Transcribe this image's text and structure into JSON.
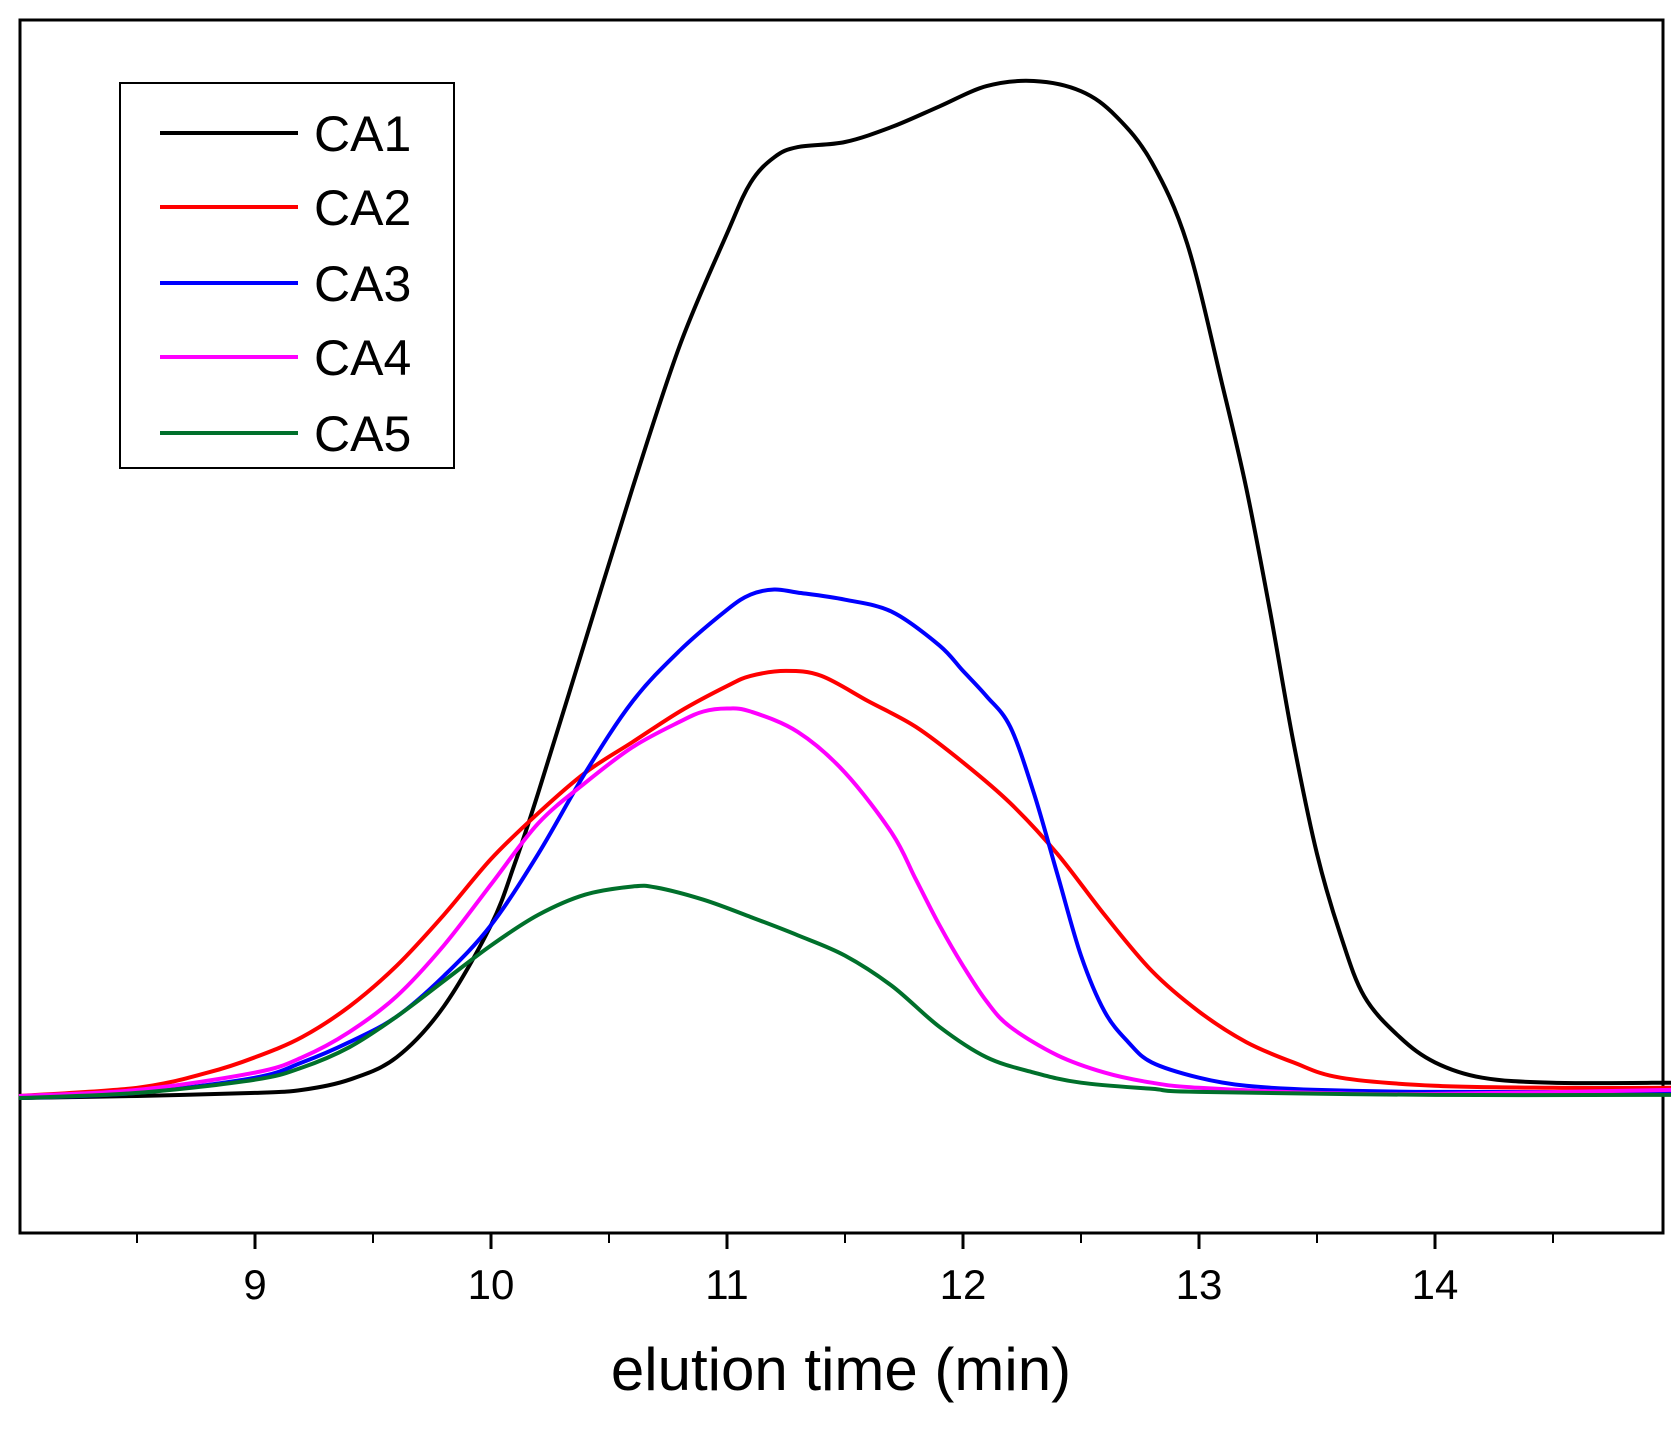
{
  "chart_data": {
    "type": "line",
    "title": "",
    "xlabel": "elution time (min)",
    "ylabel": "",
    "xlim": [
      8,
      15
    ],
    "ylim": [
      -0.12,
      1.0
    ],
    "x_ticks": [
      9,
      10,
      11,
      12,
      13,
      14
    ],
    "x_tick_labels": [
      "9",
      "10",
      "11",
      "12",
      "13",
      "14"
    ],
    "x_minor_ticks": [
      8.5,
      9.5,
      10.5,
      11.5,
      12.5,
      13.5,
      14.5
    ],
    "legend_position": "top-left",
    "series": [
      {
        "name": "CA1",
        "color": "#000000",
        "points": [
          [
            8.0,
            0.0
          ],
          [
            8.5,
            0.002
          ],
          [
            9.0,
            0.005
          ],
          [
            9.2,
            0.008
          ],
          [
            9.4,
            0.018
          ],
          [
            9.6,
            0.04
          ],
          [
            9.8,
            0.09
          ],
          [
            10.0,
            0.17
          ],
          [
            10.1,
            0.23
          ],
          [
            10.2,
            0.3
          ],
          [
            10.4,
            0.45
          ],
          [
            10.6,
            0.6
          ],
          [
            10.8,
            0.74
          ],
          [
            11.0,
            0.85
          ],
          [
            11.1,
            0.9
          ],
          [
            11.2,
            0.925
          ],
          [
            11.3,
            0.935
          ],
          [
            11.5,
            0.94
          ],
          [
            11.7,
            0.955
          ],
          [
            11.9,
            0.975
          ],
          [
            12.1,
            0.995
          ],
          [
            12.3,
            1.0
          ],
          [
            12.5,
            0.99
          ],
          [
            12.65,
            0.965
          ],
          [
            12.8,
            0.92
          ],
          [
            12.95,
            0.84
          ],
          [
            13.1,
            0.7
          ],
          [
            13.2,
            0.6
          ],
          [
            13.3,
            0.48
          ],
          [
            13.4,
            0.35
          ],
          [
            13.5,
            0.24
          ],
          [
            13.6,
            0.16
          ],
          [
            13.7,
            0.1
          ],
          [
            13.85,
            0.06
          ],
          [
            14.0,
            0.035
          ],
          [
            14.2,
            0.02
          ],
          [
            14.5,
            0.015
          ],
          [
            15.0,
            0.015
          ]
        ]
      },
      {
        "name": "CA2",
        "color": "#ff0000",
        "points": [
          [
            8.0,
            0.002
          ],
          [
            8.5,
            0.01
          ],
          [
            8.8,
            0.025
          ],
          [
            9.0,
            0.04
          ],
          [
            9.2,
            0.06
          ],
          [
            9.4,
            0.09
          ],
          [
            9.6,
            0.13
          ],
          [
            9.8,
            0.18
          ],
          [
            10.0,
            0.235
          ],
          [
            10.2,
            0.28
          ],
          [
            10.4,
            0.32
          ],
          [
            10.6,
            0.35
          ],
          [
            10.8,
            0.38
          ],
          [
            11.0,
            0.405
          ],
          [
            11.1,
            0.415
          ],
          [
            11.25,
            0.42
          ],
          [
            11.4,
            0.415
          ],
          [
            11.6,
            0.39
          ],
          [
            11.8,
            0.365
          ],
          [
            12.0,
            0.33
          ],
          [
            12.2,
            0.29
          ],
          [
            12.4,
            0.24
          ],
          [
            12.6,
            0.18
          ],
          [
            12.8,
            0.125
          ],
          [
            13.0,
            0.085
          ],
          [
            13.2,
            0.055
          ],
          [
            13.4,
            0.035
          ],
          [
            13.6,
            0.02
          ],
          [
            14.0,
            0.012
          ],
          [
            14.5,
            0.01
          ],
          [
            15.0,
            0.01
          ]
        ]
      },
      {
        "name": "CA3",
        "color": "#0000ff",
        "points": [
          [
            8.0,
            0.0
          ],
          [
            8.5,
            0.005
          ],
          [
            9.0,
            0.02
          ],
          [
            9.2,
            0.035
          ],
          [
            9.4,
            0.055
          ],
          [
            9.6,
            0.08
          ],
          [
            9.8,
            0.12
          ],
          [
            10.0,
            0.17
          ],
          [
            10.2,
            0.24
          ],
          [
            10.4,
            0.32
          ],
          [
            10.6,
            0.39
          ],
          [
            10.8,
            0.44
          ],
          [
            11.0,
            0.48
          ],
          [
            11.1,
            0.495
          ],
          [
            11.2,
            0.5
          ],
          [
            11.3,
            0.497
          ],
          [
            11.5,
            0.49
          ],
          [
            11.7,
            0.478
          ],
          [
            11.9,
            0.445
          ],
          [
            12.0,
            0.42
          ],
          [
            12.1,
            0.395
          ],
          [
            12.2,
            0.365
          ],
          [
            12.3,
            0.3
          ],
          [
            12.4,
            0.22
          ],
          [
            12.5,
            0.14
          ],
          [
            12.6,
            0.085
          ],
          [
            12.7,
            0.055
          ],
          [
            12.8,
            0.035
          ],
          [
            13.0,
            0.02
          ],
          [
            13.2,
            0.012
          ],
          [
            13.5,
            0.008
          ],
          [
            14.0,
            0.006
          ],
          [
            15.0,
            0.006
          ]
        ]
      },
      {
        "name": "CA4",
        "color": "#ff00ff",
        "points": [
          [
            8.0,
            0.002
          ],
          [
            8.5,
            0.008
          ],
          [
            9.0,
            0.025
          ],
          [
            9.2,
            0.04
          ],
          [
            9.4,
            0.065
          ],
          [
            9.6,
            0.1
          ],
          [
            9.8,
            0.15
          ],
          [
            10.0,
            0.21
          ],
          [
            10.2,
            0.27
          ],
          [
            10.4,
            0.31
          ],
          [
            10.6,
            0.345
          ],
          [
            10.8,
            0.37
          ],
          [
            10.9,
            0.38
          ],
          [
            11.0,
            0.383
          ],
          [
            11.1,
            0.38
          ],
          [
            11.3,
            0.36
          ],
          [
            11.5,
            0.32
          ],
          [
            11.7,
            0.26
          ],
          [
            11.8,
            0.215
          ],
          [
            11.9,
            0.17
          ],
          [
            12.0,
            0.13
          ],
          [
            12.1,
            0.095
          ],
          [
            12.2,
            0.07
          ],
          [
            12.4,
            0.042
          ],
          [
            12.6,
            0.025
          ],
          [
            12.8,
            0.015
          ],
          [
            13.0,
            0.01
          ],
          [
            13.5,
            0.005
          ],
          [
            14.0,
            0.004
          ],
          [
            15.0,
            0.008
          ]
        ]
      },
      {
        "name": "CA5",
        "color": "#00702b",
        "points": [
          [
            8.0,
            0.0
          ],
          [
            8.5,
            0.005
          ],
          [
            9.0,
            0.018
          ],
          [
            9.2,
            0.03
          ],
          [
            9.4,
            0.05
          ],
          [
            9.6,
            0.08
          ],
          [
            9.8,
            0.115
          ],
          [
            10.0,
            0.15
          ],
          [
            10.2,
            0.18
          ],
          [
            10.4,
            0.2
          ],
          [
            10.6,
            0.208
          ],
          [
            10.7,
            0.207
          ],
          [
            10.9,
            0.195
          ],
          [
            11.1,
            0.178
          ],
          [
            11.3,
            0.16
          ],
          [
            11.5,
            0.14
          ],
          [
            11.7,
            0.11
          ],
          [
            11.9,
            0.07
          ],
          [
            12.1,
            0.04
          ],
          [
            12.3,
            0.025
          ],
          [
            12.5,
            0.015
          ],
          [
            12.8,
            0.009
          ],
          [
            13.0,
            0.006
          ],
          [
            14.0,
            0.003
          ],
          [
            15.0,
            0.003
          ]
        ]
      }
    ]
  }
}
